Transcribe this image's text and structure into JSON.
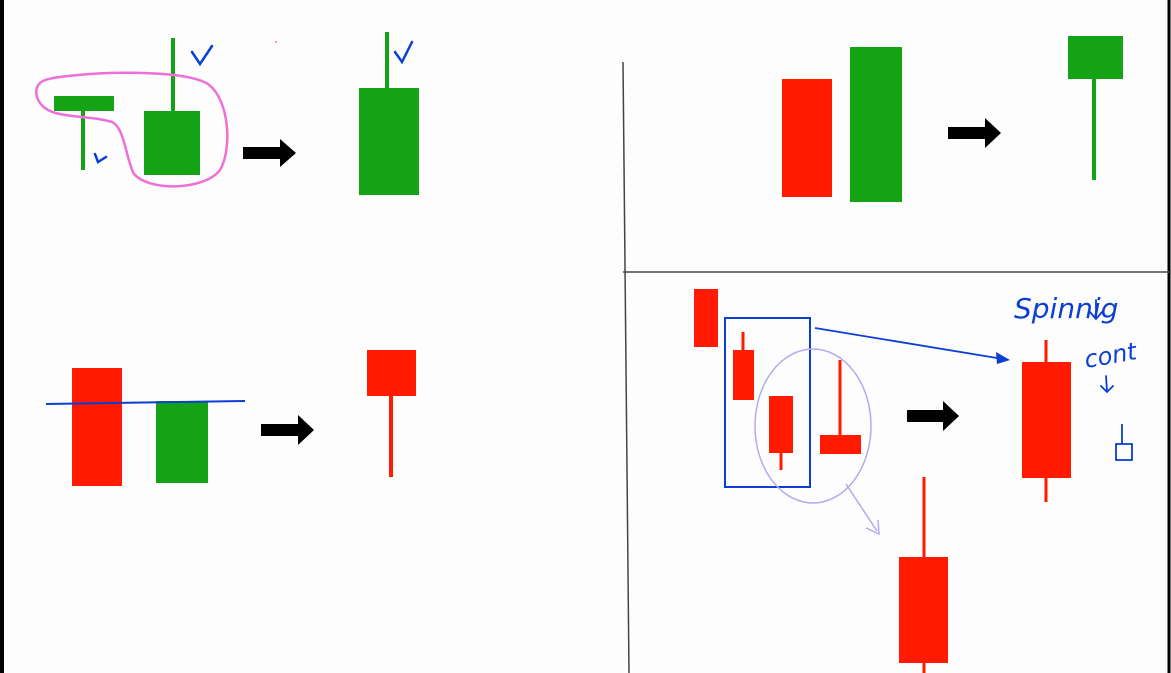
{
  "colors": {
    "bullish": "#14a314",
    "bearish": "#ff1a00",
    "arrow": "#000000",
    "frame": "#000000",
    "divider": "#444444",
    "ink_blue": "#0b3fd4",
    "ink_pink": "#ee6fd8",
    "ink_lavender": "#b6a9f0"
  },
  "panels": [
    {
      "id": "top-left",
      "pattern": "hammer-then-bullish",
      "input_candles": [
        "bullish-t",
        "bullish"
      ],
      "result": "bullish"
    },
    {
      "id": "top-right",
      "pattern": "bearish-then-bullish-engulf",
      "input_candles": [
        "bearish",
        "bullish"
      ],
      "result": "bullish-hanging"
    },
    {
      "id": "bottom-left",
      "pattern": "bearish-then-bullish",
      "input_candles": [
        "bearish",
        "bullish"
      ],
      "result": "bearish-hanging"
    },
    {
      "id": "bottom-right",
      "pattern": "four-bearish",
      "input_candles": [
        "bearish",
        "bearish",
        "bearish",
        "bearish-inverted"
      ],
      "result": "bearish-spinning"
    }
  ],
  "annotations": {
    "handwriting_1": "Spinnig",
    "handwriting_2": "cont",
    "icons": [
      "checkmark-icon",
      "arrow-right-icon",
      "lasso-icon",
      "box-outline-icon",
      "ellipse-outline-icon",
      "down-arrow-icon"
    ]
  }
}
